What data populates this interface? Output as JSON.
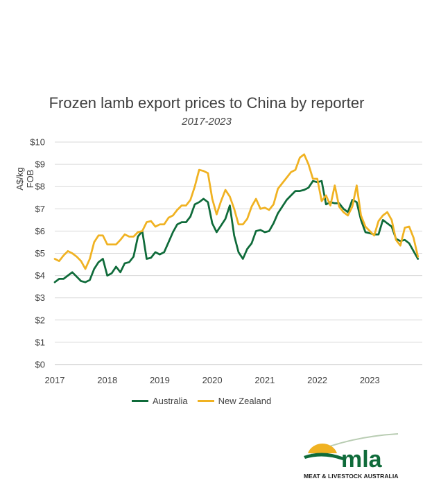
{
  "chart_data": {
    "type": "line",
    "title": "Frozen lamb export prices to China by reporter",
    "subtitle": "2017-2023",
    "xlabel": "",
    "ylabel": "A$/kg FOB",
    "xlim": [
      2017,
      2024
    ],
    "ylim": [
      0,
      10
    ],
    "x_ticks": [
      "2017",
      "2018",
      "2019",
      "2020",
      "2021",
      "2022",
      "2023"
    ],
    "y_ticks": [
      "$0",
      "$1",
      "$2",
      "$3",
      "$4",
      "$5",
      "$6",
      "$7",
      "$8",
      "$9",
      "$10"
    ],
    "grid": "horizontal",
    "legend_position": "bottom",
    "series": [
      {
        "name": "Australia",
        "color": "#0f6b3a",
        "x": [
          2017.0,
          2017.083,
          2017.167,
          2017.25,
          2017.333,
          2017.417,
          2017.5,
          2017.583,
          2017.667,
          2017.75,
          2017.833,
          2017.917,
          2018.0,
          2018.083,
          2018.167,
          2018.25,
          2018.333,
          2018.417,
          2018.5,
          2018.583,
          2018.667,
          2018.75,
          2018.833,
          2018.917,
          2019.0,
          2019.083,
          2019.167,
          2019.25,
          2019.333,
          2019.417,
          2019.5,
          2019.583,
          2019.667,
          2019.75,
          2019.833,
          2019.917,
          2020.0,
          2020.083,
          2020.167,
          2020.25,
          2020.333,
          2020.417,
          2020.5,
          2020.583,
          2020.667,
          2020.75,
          2020.833,
          2020.917,
          2021.0,
          2021.083,
          2021.167,
          2021.25,
          2021.333,
          2021.417,
          2021.5,
          2021.583,
          2021.667,
          2021.75,
          2021.833,
          2021.917,
          2022.0,
          2022.083,
          2022.167,
          2022.25,
          2022.333,
          2022.417,
          2022.5,
          2022.583,
          2022.667,
          2022.75,
          2022.833,
          2022.917,
          2023.0,
          2023.083,
          2023.167,
          2023.25,
          2023.333,
          2023.417,
          2023.5,
          2023.583,
          2023.667,
          2023.75,
          2023.833,
          2023.917
        ],
        "y": [
          3.7,
          3.85,
          3.85,
          4.0,
          4.15,
          3.95,
          3.75,
          3.7,
          3.8,
          4.3,
          4.6,
          4.75,
          4.0,
          4.1,
          4.4,
          4.15,
          4.55,
          4.6,
          4.85,
          5.75,
          6.0,
          4.75,
          4.8,
          5.05,
          4.95,
          5.05,
          5.5,
          5.95,
          6.3,
          6.4,
          6.4,
          6.65,
          7.2,
          7.3,
          7.45,
          7.3,
          6.35,
          5.95,
          6.25,
          6.55,
          7.15,
          5.8,
          5.05,
          4.75,
          5.2,
          5.45,
          6.0,
          6.05,
          5.95,
          6.0,
          6.35,
          6.8,
          7.1,
          7.4,
          7.6,
          7.8,
          7.8,
          7.85,
          7.95,
          8.25,
          8.2,
          8.25,
          7.2,
          7.3,
          7.25,
          7.25,
          7.0,
          6.85,
          7.4,
          7.3,
          6.5,
          5.95,
          5.9,
          5.85,
          5.85,
          6.5,
          6.35,
          6.2,
          5.65,
          5.55,
          5.6,
          5.45,
          5.1,
          4.75
        ]
      },
      {
        "name": "New Zealand",
        "color": "#f0b222",
        "x": [
          2017.0,
          2017.083,
          2017.167,
          2017.25,
          2017.333,
          2017.417,
          2017.5,
          2017.583,
          2017.667,
          2017.75,
          2017.833,
          2017.917,
          2018.0,
          2018.083,
          2018.167,
          2018.25,
          2018.333,
          2018.417,
          2018.5,
          2018.583,
          2018.667,
          2018.75,
          2018.833,
          2018.917,
          2019.0,
          2019.083,
          2019.167,
          2019.25,
          2019.333,
          2019.417,
          2019.5,
          2019.583,
          2019.667,
          2019.75,
          2019.833,
          2019.917,
          2020.0,
          2020.083,
          2020.167,
          2020.25,
          2020.333,
          2020.417,
          2020.5,
          2020.583,
          2020.667,
          2020.75,
          2020.833,
          2020.917,
          2021.0,
          2021.083,
          2021.167,
          2021.25,
          2021.333,
          2021.417,
          2021.5,
          2021.583,
          2021.667,
          2021.75,
          2021.833,
          2021.917,
          2022.0,
          2022.083,
          2022.167,
          2022.25,
          2022.333,
          2022.417,
          2022.5,
          2022.583,
          2022.667,
          2022.75,
          2022.833,
          2022.917,
          2023.0,
          2023.083,
          2023.167,
          2023.25,
          2023.333,
          2023.417,
          2023.5,
          2023.583,
          2023.667,
          2023.75,
          2023.833,
          2023.917
        ],
        "y": [
          4.75,
          4.65,
          4.9,
          5.1,
          5.0,
          4.85,
          4.65,
          4.3,
          4.75,
          5.5,
          5.8,
          5.8,
          5.4,
          5.4,
          5.4,
          5.6,
          5.85,
          5.75,
          5.75,
          5.95,
          6.0,
          6.4,
          6.45,
          6.2,
          6.3,
          6.3,
          6.6,
          6.7,
          6.95,
          7.15,
          7.15,
          7.4,
          8.0,
          8.75,
          8.7,
          8.6,
          7.45,
          6.75,
          7.35,
          7.85,
          7.55,
          7.0,
          6.3,
          6.3,
          6.55,
          7.1,
          7.45,
          7.0,
          7.05,
          6.95,
          7.2,
          7.9,
          8.15,
          8.4,
          8.65,
          8.75,
          9.3,
          9.45,
          9.0,
          8.35,
          8.35,
          7.35,
          7.6,
          7.15,
          8.05,
          7.1,
          6.85,
          6.7,
          7.1,
          8.05,
          6.7,
          6.2,
          6.0,
          5.8,
          6.45,
          6.7,
          6.85,
          6.5,
          5.6,
          5.35,
          6.15,
          6.2,
          5.7,
          4.85
        ]
      }
    ]
  },
  "logo": {
    "wordmark": "mla",
    "tagline": "MEAT & LIVESTOCK AUSTRALIA"
  }
}
